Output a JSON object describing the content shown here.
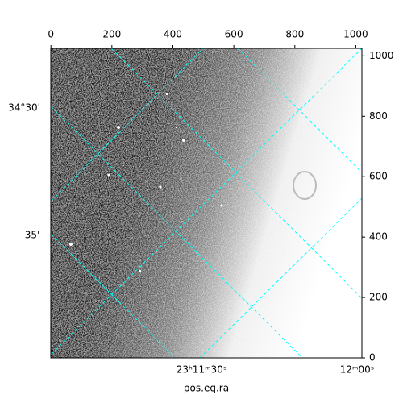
{
  "chart_data": {
    "type": "image",
    "xlabel": "pos.eq.ra",
    "xlim": [
      -0.5,
      1020
    ],
    "ylim": [
      0,
      1025
    ],
    "xticks": [
      0,
      200,
      400,
      600,
      800,
      1000
    ],
    "yticks": [
      0,
      200,
      400,
      600,
      800,
      1000
    ],
    "ra_labels": [
      "23ʰ11ᵐ30ˢ",
      "12ᵐ00ˢ"
    ],
    "dec_labels": [
      "34°30'",
      "35'"
    ],
    "grid_color": "#00ffff"
  }
}
